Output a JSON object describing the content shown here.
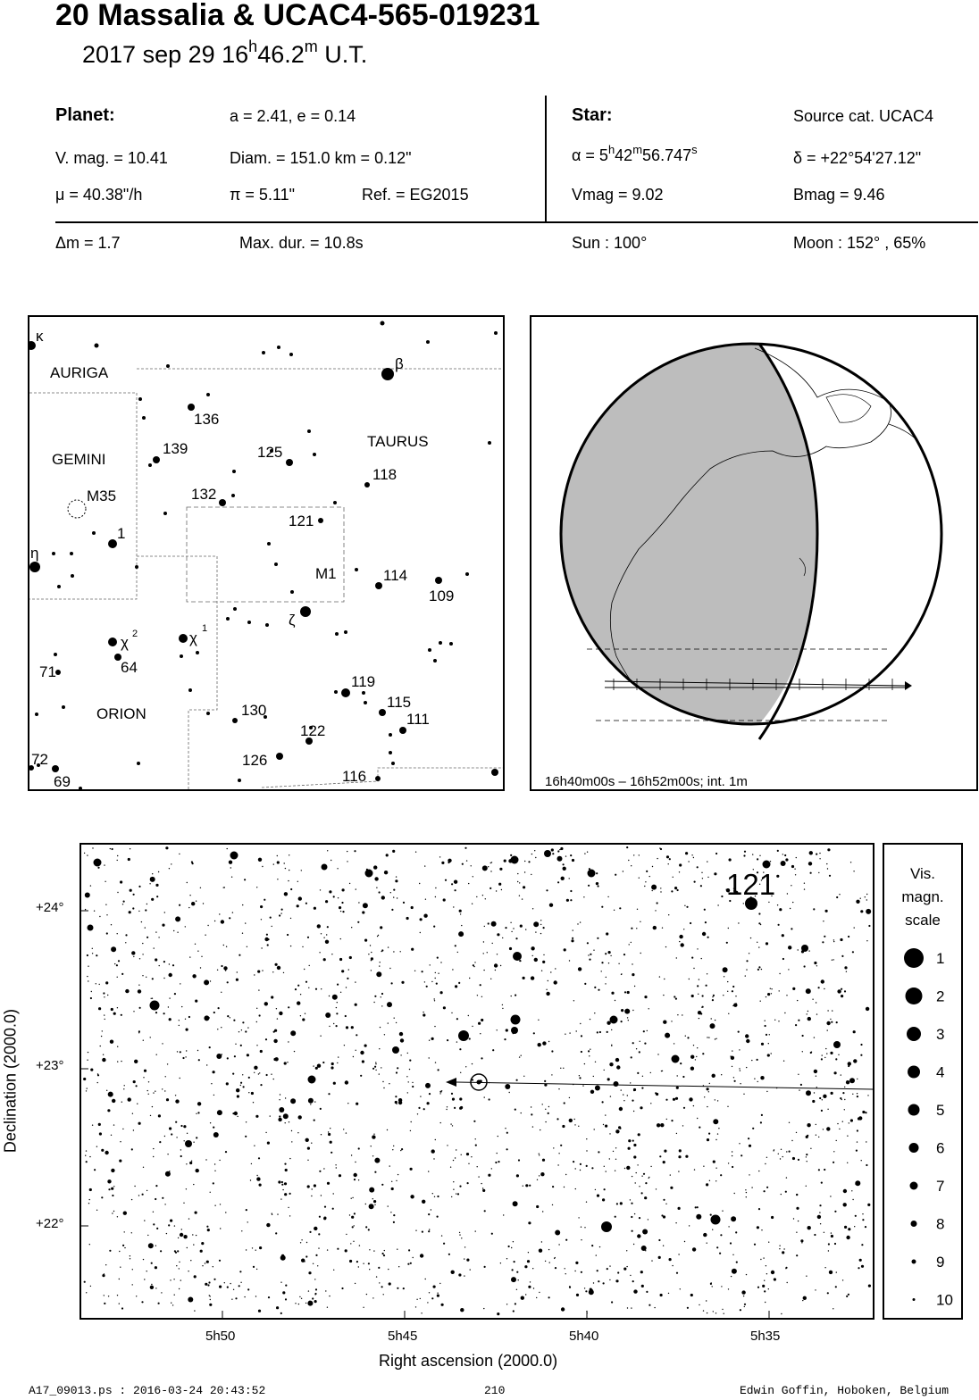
{
  "header": {
    "title": "20 Massalia  &  UCAC4-565-019231",
    "date": "2017 sep 29  16",
    "time_h_sup": "h",
    "time_min": "46.2",
    "time_m_sup": "m",
    "time_tail": " U.T."
  },
  "planet": {
    "label": "Planet:",
    "orbit": "a = 2.41, e = 0.14",
    "vmag": "V. mag. = 10.41",
    "diam": "Diam. = 151.0 km = 0.12\"",
    "mu": "μ =  40.38\"/h",
    "pi": "π =  5.11\"",
    "ref": "Ref. = EG2015"
  },
  "star": {
    "label": "Star:",
    "source": "Source cat.  UCAC4",
    "alpha_prefix": "α =  5",
    "alpha_h": "h",
    "alpha_mid": "42",
    "alpha_m": "m",
    "alpha_sec": "56.747",
    "alpha_s": "s",
    "delta": "δ = +22°54'27.12\"",
    "vmag": "Vmag =  9.02",
    "bmag": "Bmag =  9.46"
  },
  "event": {
    "dm": "Δm = 1.7",
    "maxdur": "Max. dur. = 10.8s",
    "sun": "Sun : 100°",
    "moon": "Moon : 152° , 65%"
  },
  "finder": {
    "constellations": [
      "AURIGA",
      "GEMINI",
      "TAURUS",
      "ORION"
    ],
    "labels": [
      "κ",
      "β",
      "136",
      "139",
      "125",
      "118",
      "M35",
      "132",
      "121",
      "1",
      "η",
      "M1",
      "114",
      "109",
      "ζ",
      "χ",
      "2",
      "χ",
      "1",
      "64",
      "71",
      "119",
      "115",
      "111",
      "130",
      "122",
      "126",
      "116",
      "72",
      "69"
    ]
  },
  "globe": {
    "caption": "16h40m00s – 16h52m00s; int.  1m"
  },
  "starmap": {
    "label_121": "121",
    "y_ticks": [
      "+24°",
      "+23°",
      "+22°"
    ],
    "x_ticks": [
      "5h50",
      "5h45",
      "5h40",
      "5h35"
    ],
    "xlabel": "Right ascension (2000.0)",
    "ylabel": "Declination (2000.0)"
  },
  "scale": {
    "title": [
      "Vis.",
      "magn.",
      "scale"
    ],
    "mags": [
      "1",
      "2",
      "3",
      "4",
      "5",
      "6",
      "7",
      "8",
      "9",
      "10"
    ]
  },
  "footer": {
    "left": "A17_09013.ps : 2016-03-24 20:43:52",
    "center": "210",
    "right": "Edwin Goffin, Hoboken, Belgium"
  }
}
